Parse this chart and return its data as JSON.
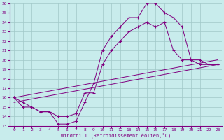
{
  "xlabel": "Windchill (Refroidissement éolien,°C)",
  "bg_color": "#c8ecec",
  "line_color": "#800080",
  "grid_color": "#a0c8c8",
  "xlim": [
    -0.5,
    23.5
  ],
  "ylim": [
    13,
    26
  ],
  "xticks": [
    0,
    1,
    2,
    3,
    4,
    5,
    6,
    7,
    8,
    9,
    10,
    11,
    12,
    13,
    14,
    15,
    16,
    17,
    18,
    19,
    20,
    21,
    22,
    23
  ],
  "yticks": [
    13,
    14,
    15,
    16,
    17,
    18,
    19,
    20,
    21,
    22,
    23,
    24,
    25,
    26
  ],
  "series": [
    {
      "x": [
        0,
        1,
        2,
        3,
        4,
        5,
        6,
        7,
        8,
        9,
        10,
        11,
        12,
        13,
        14,
        15,
        16,
        17,
        18,
        19,
        20,
        21,
        22,
        23
      ],
      "y": [
        16,
        15,
        15,
        14.5,
        14.5,
        13.2,
        13.2,
        13.5,
        15.5,
        17.5,
        21,
        22.5,
        23.5,
        24.5,
        24.5,
        26,
        26,
        25,
        24.5,
        23.5,
        20,
        20,
        19.5,
        19.5
      ],
      "marker": true
    },
    {
      "x": [
        0,
        1,
        2,
        3,
        4,
        5,
        6,
        7,
        8,
        9,
        10,
        11,
        12,
        13,
        14,
        15,
        16,
        17,
        18,
        19,
        20,
        21,
        22,
        23
      ],
      "y": [
        16,
        15.5,
        15,
        14.5,
        14.5,
        14,
        14,
        14.3,
        16.5,
        16.5,
        19.5,
        21,
        22,
        23,
        23.5,
        24,
        23.5,
        24,
        21,
        20,
        20,
        19.5,
        19.5,
        19.5
      ],
      "marker": true
    },
    {
      "x": [
        0,
        23
      ],
      "y": [
        16,
        20
      ],
      "marker": false
    },
    {
      "x": [
        0,
        23
      ],
      "y": [
        15.5,
        19.5
      ],
      "marker": false
    }
  ]
}
